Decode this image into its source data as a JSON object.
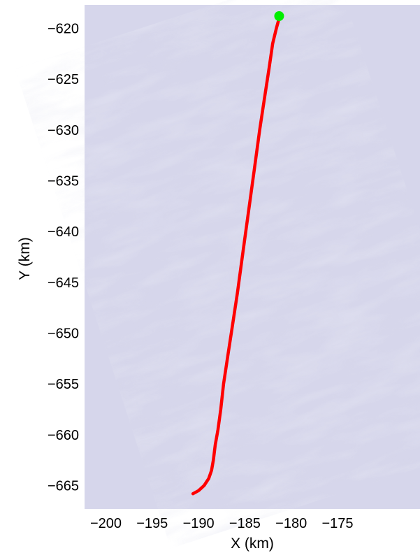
{
  "chart_data": {
    "type": "line",
    "title": "",
    "xlabel": "X (km)",
    "ylabel": "Y (km)",
    "xlim": [
      -202.3,
      -166.1
    ],
    "ylim": [
      -667.3,
      -617.7
    ],
    "xticks": [
      -200,
      -195,
      -190,
      -185,
      -180,
      -175
    ],
    "xtick_labels": [
      "−200",
      "−195",
      "−190",
      "−185",
      "−180",
      "−175"
    ],
    "yticks": [
      -620,
      -625,
      -630,
      -635,
      -640,
      -645,
      -650,
      -655,
      -660,
      -665
    ],
    "ytick_labels": [
      "−620",
      "−625",
      "−630",
      "−635",
      "−640",
      "−645",
      "−650",
      "−655",
      "−660",
      "−665"
    ],
    "grid": false,
    "background": "satellite-imagery",
    "series": [
      {
        "color": "#ff0000",
        "x": [
          -190.6,
          -190.0,
          -189.4,
          -188.9,
          -188.6,
          -188.4,
          -188.2,
          -187.9,
          -187.6,
          -187.3,
          -186.8,
          -186.3,
          -185.8,
          -185.2,
          -184.6,
          -184.0,
          -183.4,
          -182.9,
          -182.4,
          -182.0,
          -181.6,
          -181.3
        ],
        "y": [
          -665.8,
          -665.5,
          -665.0,
          -664.3,
          -663.5,
          -662.5,
          -661.0,
          -659.5,
          -657.5,
          -655.0,
          -652.0,
          -649.0,
          -646.0,
          -642.0,
          -638.0,
          -634.0,
          -630.0,
          -627.0,
          -624.0,
          -621.5,
          -620.0,
          -619.0
        ]
      }
    ],
    "markers": [
      {
        "x": -181.3,
        "y": -618.8,
        "color": "#00ee00"
      }
    ]
  }
}
